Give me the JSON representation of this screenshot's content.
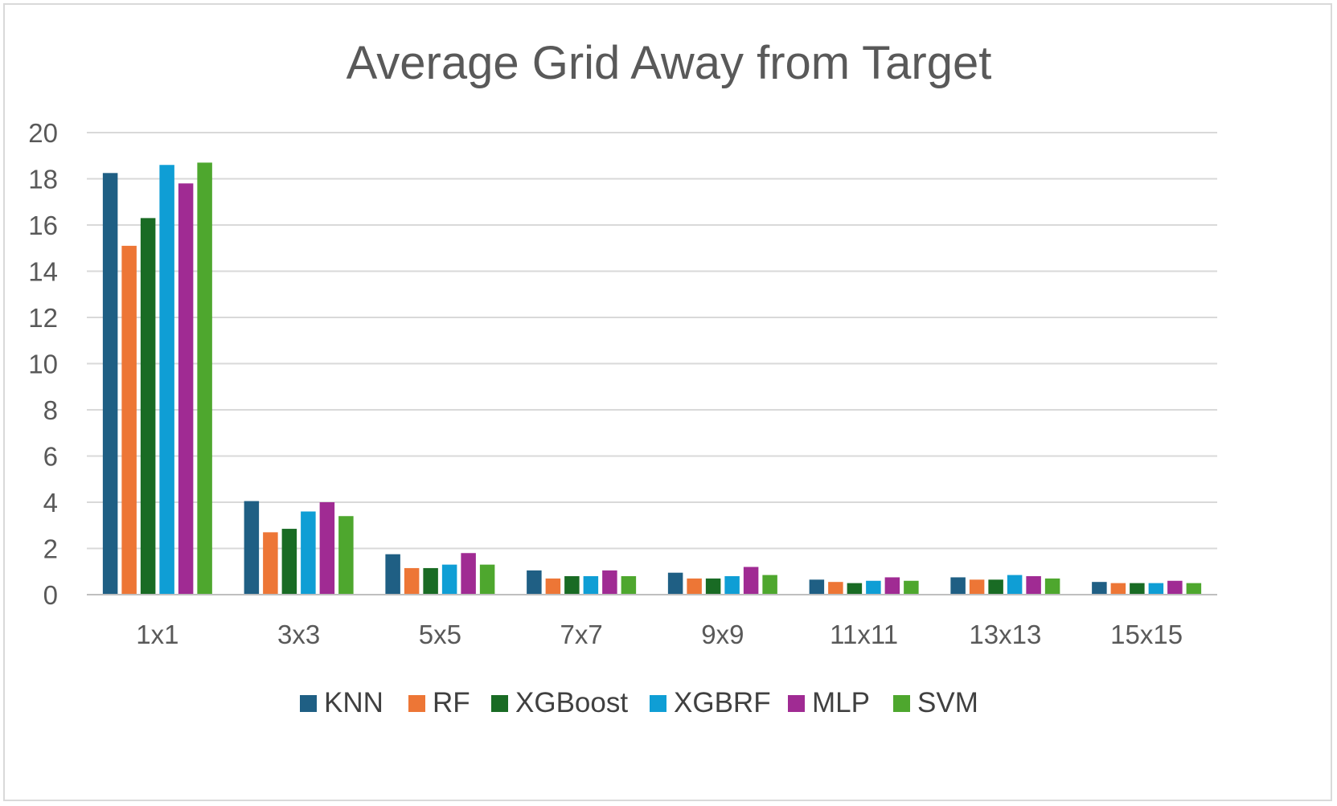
{
  "chart_data": {
    "type": "bar",
    "title": "Average Grid Away from Target",
    "xlabel": "",
    "ylabel": "",
    "ylim": [
      0,
      20
    ],
    "yticks": [
      "0",
      "2",
      "4",
      "6",
      "8",
      "10",
      "12",
      "14",
      "16",
      "18",
      "20"
    ],
    "grid": true,
    "legend": "bottom",
    "categories": [
      "1x1",
      "3x3",
      "5x5",
      "7x7",
      "9x9",
      "11x11",
      "13x13",
      "15x15"
    ],
    "series": [
      {
        "name": "KNN",
        "color": "#1f5f84",
        "values": [
          18.25,
          4.05,
          1.75,
          1.05,
          0.95,
          0.65,
          0.75,
          0.55
        ]
      },
      {
        "name": "RF",
        "color": "#ed7636",
        "values": [
          15.1,
          2.7,
          1.15,
          0.7,
          0.7,
          0.55,
          0.65,
          0.5
        ]
      },
      {
        "name": "XGBoost",
        "color": "#196b24",
        "values": [
          16.3,
          2.85,
          1.15,
          0.8,
          0.7,
          0.5,
          0.65,
          0.5
        ]
      },
      {
        "name": "XGBRF",
        "color": "#0f9ed5",
        "values": [
          18.6,
          3.6,
          1.3,
          0.8,
          0.8,
          0.6,
          0.85,
          0.5
        ]
      },
      {
        "name": "MLP",
        "color": "#a02b93",
        "values": [
          17.8,
          4.0,
          1.8,
          1.05,
          1.2,
          0.75,
          0.8,
          0.6
        ]
      },
      {
        "name": "SVM",
        "color": "#4ea72e",
        "values": [
          18.7,
          3.4,
          1.3,
          0.8,
          0.85,
          0.6,
          0.7,
          0.5
        ]
      }
    ]
  }
}
